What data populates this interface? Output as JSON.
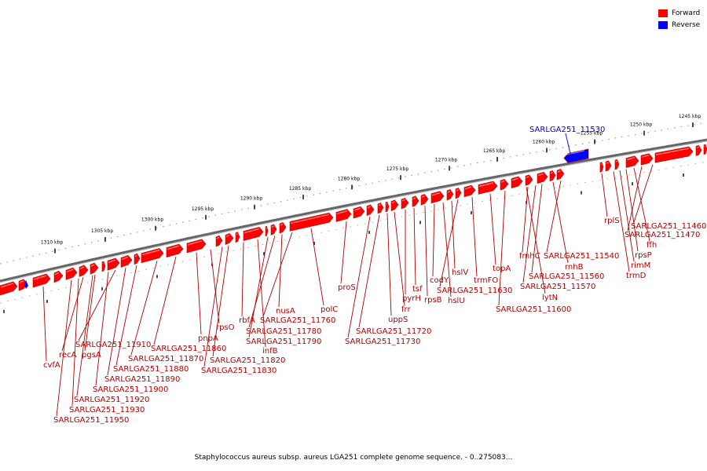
{
  "legend": {
    "forward_label": "Forward",
    "reverse_label": "Reverse",
    "forward_color": "#ff0000",
    "reverse_color": "#0000ff"
  },
  "caption": "Staphylococcus aureus subsp. aureus LGA251 complete genome sequence. - 0..275083...",
  "colors": {
    "label_red": "#b00000",
    "label_blue": "#0000c0",
    "backbone": "#888888"
  },
  "scale_ticks": [
    "1245 kbp",
    "1250 kbp",
    "1255 kbp",
    "1260 kbp",
    "1265 kbp",
    "1270 kbp",
    "1275 kbp",
    "1280 kbp",
    "1285 kbp",
    "1290 kbp",
    "1295 kbp",
    "1300 kbp",
    "1305 kbp",
    "1310 kbp"
  ],
  "reverse_genes": [
    "SARLGA251_11530"
  ],
  "forward_genes": [
    "SARLGA251_11460",
    "SARLGA251_11470",
    "ffh",
    "rpsP",
    "rimM",
    "trmD",
    "rplS",
    "SARLGA251_11540",
    "rnhB",
    "SARLGA251_11560",
    "fmhC",
    "SARLGA251_11570",
    "lytN",
    "SARLGA251_11600",
    "topA",
    "trmFO",
    "SARLGA251_11630",
    "hslV",
    "hslU",
    "codY",
    "rpsB",
    "tsf",
    "pyrH",
    "frr",
    "uppS",
    "SARLGA251_11720",
    "SARLGA251_11730",
    "proS",
    "polC",
    "SARLGA251_11760",
    "nusA",
    "SARLGA251_11780",
    "SARLGA251_11790",
    "infB",
    "rbfA",
    "SARLGA251_11820",
    "SARLGA251_11830",
    "rpsO",
    "pnpA",
    "SARLGA251_11860",
    "SARLGA251_11870",
    "SARLGA251_11880",
    "SARLGA251_11890",
    "SARLGA251_11910",
    "SARLGA251_11900",
    "pgsA",
    "recA",
    "SARLGA251_11920",
    "SARLGA251_11930",
    "cvfA",
    "SARLGA251_11950"
  ]
}
